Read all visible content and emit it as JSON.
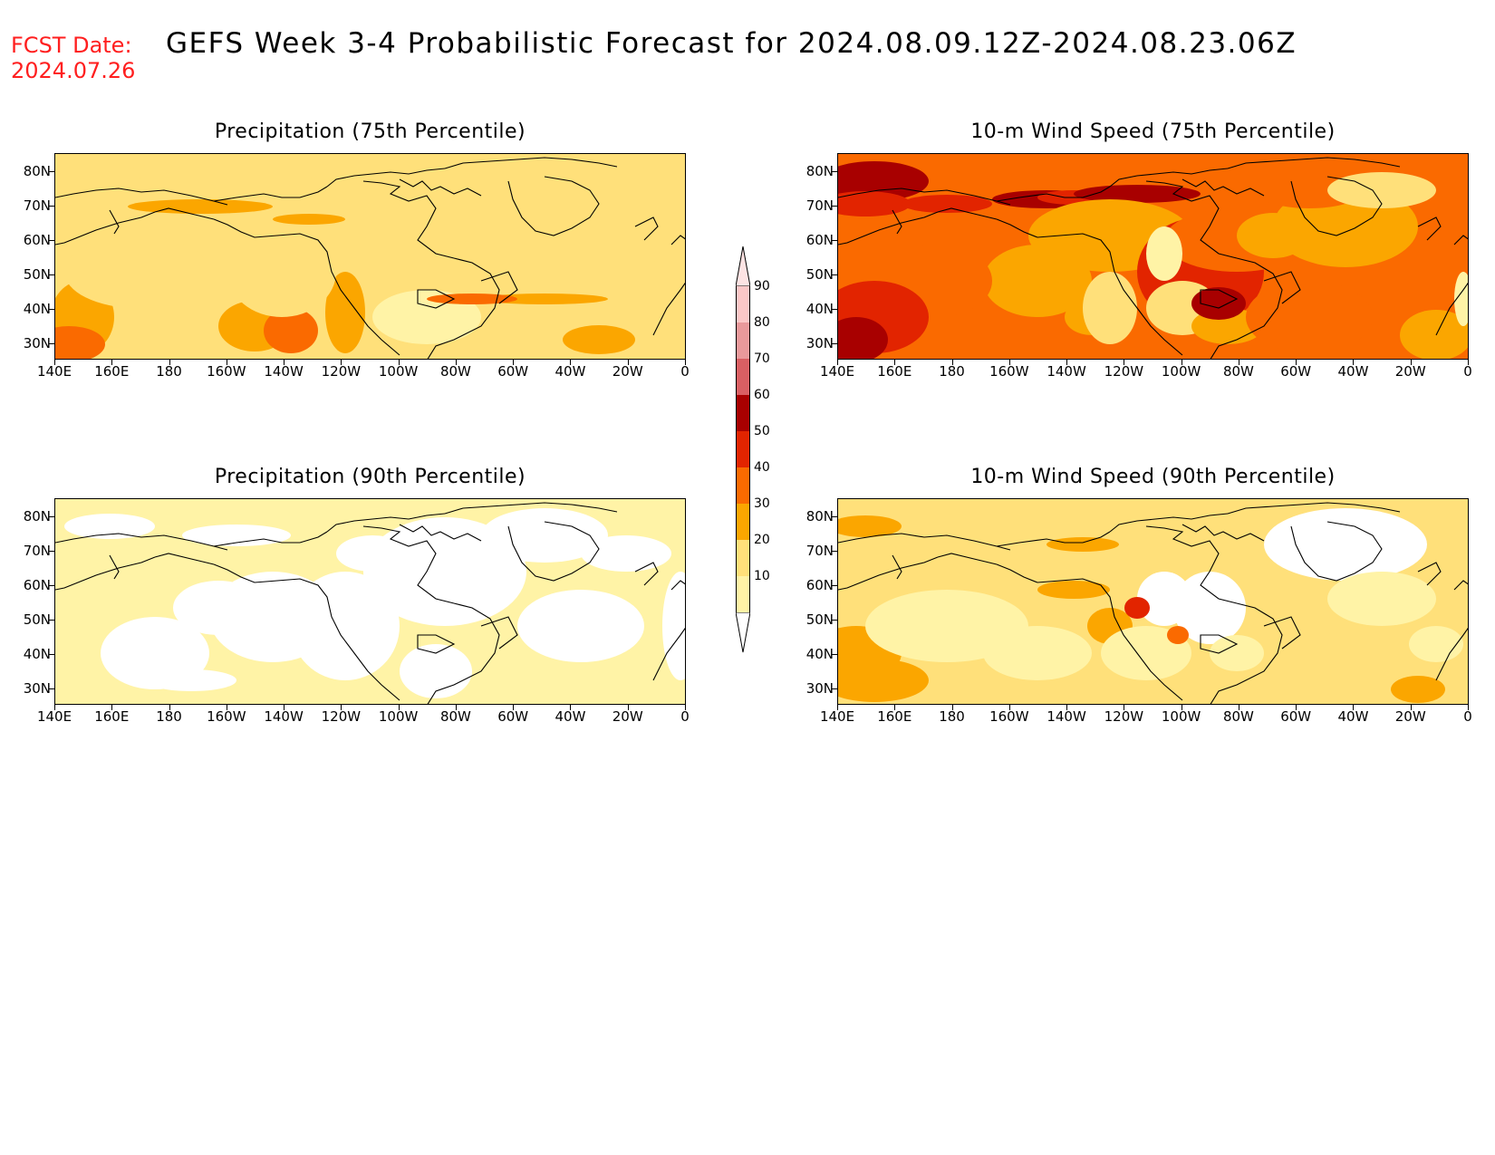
{
  "header": {
    "fcst_label": "FCST Date:",
    "fcst_date": "2024.07.26",
    "title": "GEFS Week 3-4 Probabilistic Forecast for 2024.08.09.12Z-2024.08.23.06Z"
  },
  "axes": {
    "y_labels": [
      "80N",
      "70N",
      "60N",
      "50N",
      "40N",
      "30N"
    ],
    "x_labels": [
      "140E",
      "160E",
      "180",
      "160W",
      "140W",
      "120W",
      "100W",
      "80W",
      "60W",
      "40W",
      "20W",
      "0"
    ]
  },
  "panels": [
    {
      "title": "Precipitation (75th Percentile)",
      "base_level": 20
    },
    {
      "title": "10-m Wind Speed (75th Percentile)",
      "base_level": 40
    },
    {
      "title": "Precipitation (90th Percentile)",
      "base_level": 10
    },
    {
      "title": "10-m Wind Speed (90th Percentile)",
      "base_level": 20
    }
  ],
  "colorbar": {
    "levels": [
      "90",
      "80",
      "70",
      "60",
      "50",
      "40",
      "30",
      "20",
      "10"
    ],
    "colors": [
      "#fbc7c7",
      "#e9999b",
      "#d95f63",
      "#a80000",
      "#e22400",
      "#fa6a00",
      "#fba600",
      "#ffe07a",
      "#fff3a6"
    ]
  },
  "colors": {
    "white": "#ffffff",
    "lt10": "#fff3a6",
    "lt20": "#ffe07a",
    "lt30": "#fba600",
    "lt40": "#fa6a00",
    "lt50": "#e22400",
    "lt60": "#a80000",
    "fcst_red": "#ff1f1f"
  }
}
